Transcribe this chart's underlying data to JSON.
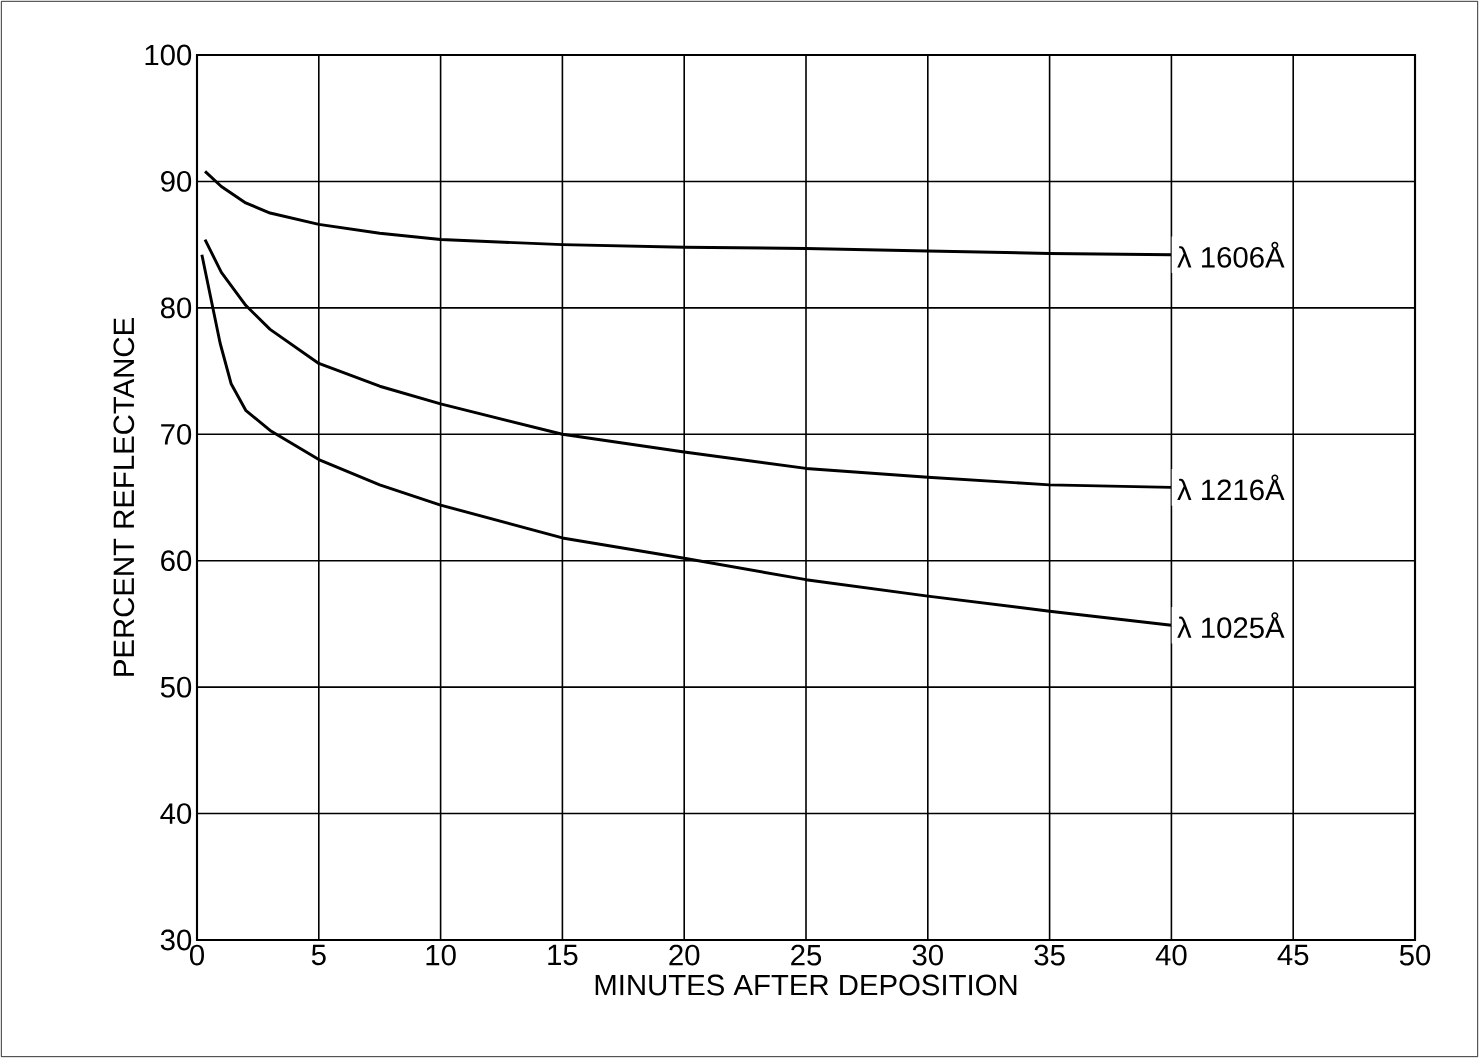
{
  "chart_data": {
    "type": "line",
    "xlabel": "MINUTES AFTER DEPOSITION",
    "ylabel": "PERCENT REFLECTANCE",
    "xlim": [
      0,
      50
    ],
    "ylim": [
      30,
      100
    ],
    "xticks": [
      0,
      5,
      10,
      15,
      20,
      25,
      30,
      35,
      40,
      45,
      50
    ],
    "yticks": [
      30,
      40,
      50,
      60,
      70,
      80,
      90,
      100
    ],
    "grid": true,
    "marker": "none",
    "line_style": "solid",
    "series": [
      {
        "name": "λ 1606Å",
        "color": "#000000",
        "x": [
          0.33,
          1,
          2,
          3,
          5,
          7.5,
          10,
          15,
          20,
          25,
          30,
          35,
          40
        ],
        "values": [
          90.8,
          89.6,
          88.3,
          87.5,
          86.6,
          85.9,
          85.4,
          85.0,
          84.8,
          84.7,
          84.5,
          84.3,
          84.2
        ]
      },
      {
        "name": "λ 1216Å",
        "color": "#000000",
        "x": [
          0.33,
          1,
          2,
          3,
          5,
          7.5,
          10,
          15,
          20,
          25,
          30,
          35,
          40
        ],
        "values": [
          85.4,
          82.8,
          80.2,
          78.3,
          75.6,
          73.8,
          72.4,
          70.0,
          68.6,
          67.3,
          66.6,
          66.0,
          65.8
        ]
      },
      {
        "name": "λ 1025Å",
        "color": "#000000",
        "x": [
          0.2,
          0.95,
          1.4,
          2,
          3,
          5,
          7.5,
          10,
          15,
          20,
          25,
          30,
          35,
          40
        ],
        "values": [
          84.2,
          77.2,
          74.0,
          71.9,
          70.3,
          68.0,
          66.0,
          64.4,
          61.8,
          60.2,
          58.5,
          57.2,
          56.0,
          54.9
        ]
      }
    ]
  }
}
